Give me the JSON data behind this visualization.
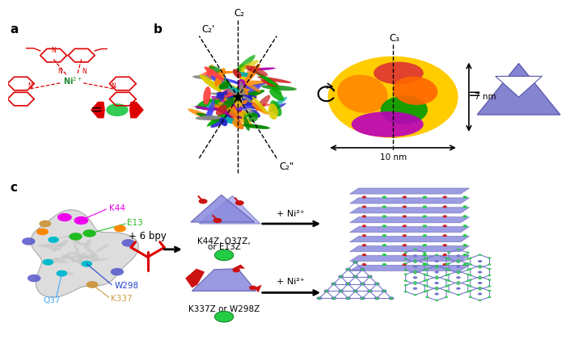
{
  "panel_a_label": "a",
  "panel_b_label": "b",
  "panel_c_label": "c",
  "bg_color": "#ffffff",
  "red_color": "#dd0000",
  "ni_color": "#22bb44",
  "bpy_red": "#cc0000",
  "magenta_label": "#ee00ee",
  "green_label": "#22bb22",
  "cyan_color": "#00bbcc",
  "tan_color": "#cc9944",
  "blue_spot": "#4444cc",
  "purple_shape": "#7777cc",
  "c2_label": "C₂",
  "c2p_label": "C₂'",
  "c2pp_label": "C₂\"",
  "c3_label": "C₃",
  "nm7": "7 nm",
  "nm10": "10 nm",
  "k44z_line1": "K44Z, Q37Z,",
  "k44z_line2": "or E13Z",
  "k337z": "K337Z or W298Z",
  "plus_ni": "+ Ni²⁺",
  "plus_bpy": "+ 6 bpy",
  "k44_label": "K44",
  "e13_label": "E13",
  "w298_label": "W298",
  "q37_label": "Q37",
  "k337_label": "K337",
  "equals": "=",
  "protein_ribbon_colors": [
    "#cc2222",
    "#2222cc",
    "#ff8800",
    "#ddcc00",
    "#008800",
    "#aa00aa",
    "#00aaaa",
    "#888888",
    "#ff4444",
    "#4444ff",
    "#ffaa00",
    "#00aa00"
  ],
  "surface_colors": [
    "#ffcc00",
    "#ff8800",
    "#dd2222",
    "#00aa00",
    "#aa00aa",
    "#ff6600"
  ],
  "grid_color": "#7777cc",
  "dot_red": "#cc2222",
  "dot_green": "#22cc44",
  "layer_color": "#8888dd"
}
